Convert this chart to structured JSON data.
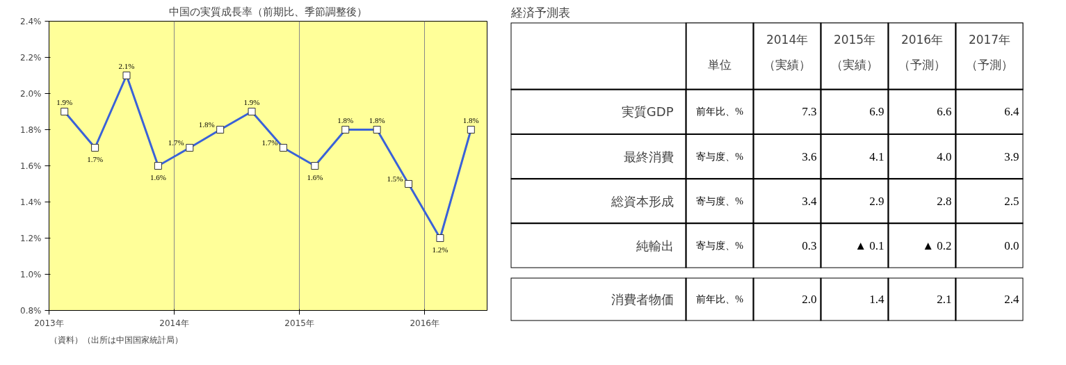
{
  "chart_data": [
    {
      "type": "line",
      "title": "中国の実質成長率（前期比、季節調整後）",
      "x": [
        "2013-02-15",
        "2013-05-15",
        "2013-08-15",
        "2013-11-15",
        "2014-02-15",
        "2014-05-15",
        "2014-08-15",
        "2014-11-15",
        "2015-02-15",
        "2015-05-15",
        "2015-08-15",
        "2015-11-15",
        "2016-02-15",
        "2016-05-15"
      ],
      "series": [
        {
          "color": "#3a62d8",
          "values": [
            1.9,
            1.7,
            2.1,
            1.6,
            1.7,
            1.8,
            1.9,
            1.7,
            1.6,
            1.8,
            1.8,
            1.5,
            1.2,
            1.8
          ],
          "value_labels": [
            "1.9%",
            "1.7%",
            "2.1%",
            "1.6%",
            "1.7%",
            "1.8%",
            "1.9%",
            "1.7%",
            "1.6%",
            "1.8%",
            "1.8%",
            "1.5%",
            "1.2%",
            "1.8%"
          ]
        }
      ],
      "xlim": [
        "2013-01-01",
        "2016-07-01"
      ],
      "xticks": [
        {
          "value": "2013-01-01",
          "label": "2013年"
        },
        {
          "value": "2014-01-01",
          "label": "2014年"
        },
        {
          "value": "2015-01-01",
          "label": "2015年"
        },
        {
          "value": "2016-01-01",
          "label": "2016年"
        }
      ],
      "ylim": [
        0.8,
        2.4
      ],
      "yticks": [
        {
          "value": 0.8,
          "label": "0.8%"
        },
        {
          "value": 1.0,
          "label": "1.0%"
        },
        {
          "value": 1.2,
          "label": "1.2%"
        },
        {
          "value": 1.4,
          "label": "1.4%"
        },
        {
          "value": 1.6,
          "label": "1.6%"
        },
        {
          "value": 1.8,
          "label": "1.8%"
        },
        {
          "value": 2.0,
          "label": "2.0%"
        },
        {
          "value": 2.2,
          "label": "2.2%"
        },
        {
          "value": 2.4,
          "label": "2.4%"
        }
      ],
      "grid": "x",
      "marker": "square",
      "line_style": "solid",
      "annotations": [
        "（資料）（出所は中国国家統計局）"
      ]
    },
    {
      "type": "heatmap",
      "title": "経済予測表",
      "categories": [
        "単位",
        "2014年（実績）",
        "2015年（実績）",
        "2016年（予測）",
        "2017年（予測）"
      ],
      "y_categories": [
        "実質GDP",
        "最終消費",
        "総資本形成",
        "純輸出"
      ],
      "cells": [
        [
          null,
          null,
          null,
          null,
          null
        ],
        [
          null,
          null,
          null,
          null,
          null
        ],
        [
          null,
          null,
          null,
          null,
          null
        ],
        [
          null,
          null,
          null,
          null,
          null
        ]
      ],
      "cell_labels": [
        [
          "前年比、%",
          "7.3",
          "6.9",
          "6.6",
          "6.4"
        ],
        [
          "寄与度、%",
          "3.6",
          "4.1",
          "4.0",
          "3.9"
        ],
        [
          "寄与度、%",
          "3.4",
          "2.9",
          "2.8",
          "2.5"
        ],
        [
          "寄与度、%",
          "0.3",
          "▲ 0.1",
          "▲ 0.2",
          "0.0"
        ]
      ]
    },
    {
      "type": "heatmap",
      "categories": [
        null,
        null,
        null,
        null,
        null
      ],
      "tick_labels": false,
      "y_categories": [
        "消費者物価"
      ],
      "cells": [
        [
          null,
          null,
          null,
          null,
          null
        ]
      ],
      "cell_labels": [
        [
          "前年比、%",
          "2.0",
          "1.4",
          "2.1",
          "2.4"
        ]
      ]
    }
  ]
}
